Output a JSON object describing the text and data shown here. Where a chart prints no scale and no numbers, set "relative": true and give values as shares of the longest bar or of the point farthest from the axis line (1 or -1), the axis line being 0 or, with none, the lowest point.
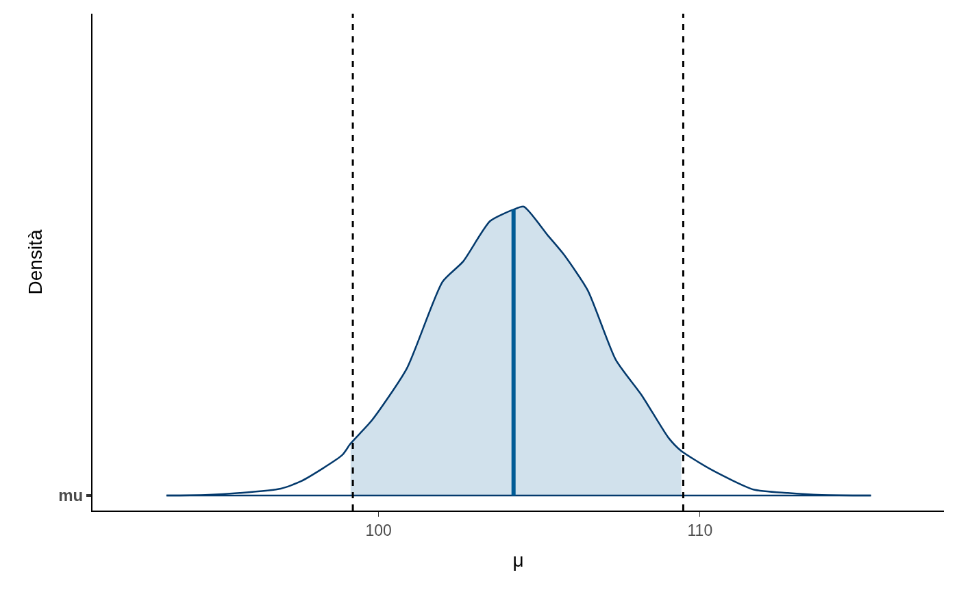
{
  "chart_data": {
    "type": "line",
    "relative": true,
    "xlabel": "μ",
    "ylabel": "Densità",
    "xlim": [
      91.1,
      117.59
    ],
    "xticks": [
      100,
      110
    ],
    "grid": false,
    "series": [
      {
        "type": "area",
        "color": "#d1e1ec",
        "x": [
          99.13,
          99.79,
          100.88,
          101.99,
          102.63,
          103.47,
          104.2,
          104.52,
          105.27,
          105.76,
          106.51,
          107.38,
          108.2,
          109.02,
          109.42
        ],
        "values": [
          0.18,
          0.26,
          0.44,
          0.74,
          0.81,
          0.95,
          0.99,
          1,
          0.9,
          0.835,
          0.71,
          0.47,
          0.345,
          0.2,
          0.154
        ]
      },
      {
        "name": "mu",
        "color": "#03396c",
        "x": [
          93.4,
          94.61,
          95.68,
          96.96,
          97.6,
          98.87,
          99.13,
          99.79,
          100.88,
          101.99,
          102.63,
          103.47,
          104.2,
          104.52,
          105.27,
          105.76,
          106.51,
          107.38,
          108.2,
          109.02,
          109.42,
          110.38,
          111.66,
          112.73,
          113.79,
          115.32
        ],
        "values": [
          0,
          0.002,
          0.009,
          0.024,
          0.05,
          0.14,
          0.18,
          0.26,
          0.44,
          0.74,
          0.81,
          0.95,
          0.99,
          1,
          0.9,
          0.835,
          0.71,
          0.47,
          0.345,
          0.2,
          0.154,
          0.088,
          0.021,
          0.009,
          0.002,
          0
        ]
      },
      {
        "color": "#03396c",
        "x": [
          93.4,
          115.32
        ],
        "values": [
          0,
          0
        ]
      },
      {
        "color": "#005b96",
        "x": [
          104.2,
          104.2
        ],
        "values": [
          0,
          0.99
        ]
      }
    ],
    "ref_lines": [
      {
        "axis": "x",
        "value": 99.2,
        "color": "#000000",
        "line_style": "dashed"
      },
      {
        "axis": "x",
        "value": 109.48,
        "color": "#000000",
        "line_style": "dashed"
      }
    ]
  }
}
